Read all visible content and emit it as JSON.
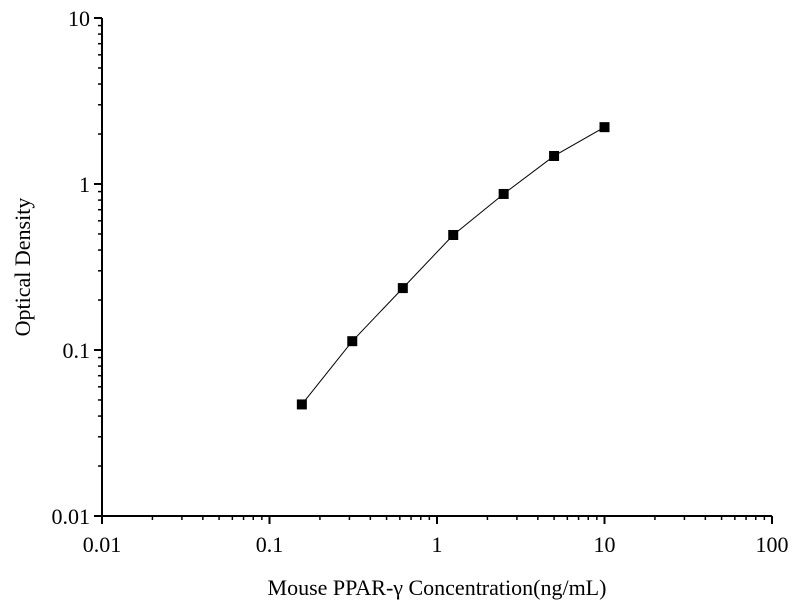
{
  "chart_data": {
    "type": "line",
    "title": "",
    "xlabel": "Mouse PPAR-γ Concentration(ng/mL)",
    "ylabel": "Optical Density",
    "xscale": "log",
    "yscale": "log",
    "xlim": [
      0.01,
      100
    ],
    "ylim": [
      0.01,
      10
    ],
    "xticks": [
      "0.01",
      "0.1",
      "1",
      "10",
      "100"
    ],
    "yticks": [
      "0.01",
      "0.1",
      "1",
      "10"
    ],
    "grid": false,
    "marker": "square",
    "color": "#000000",
    "series": [
      {
        "x": [
          0.156,
          0.312,
          0.625,
          1.25,
          2.5,
          5,
          10
        ],
        "y": [
          0.047,
          0.113,
          0.236,
          0.493,
          0.871,
          1.475,
          2.2
        ]
      }
    ]
  }
}
